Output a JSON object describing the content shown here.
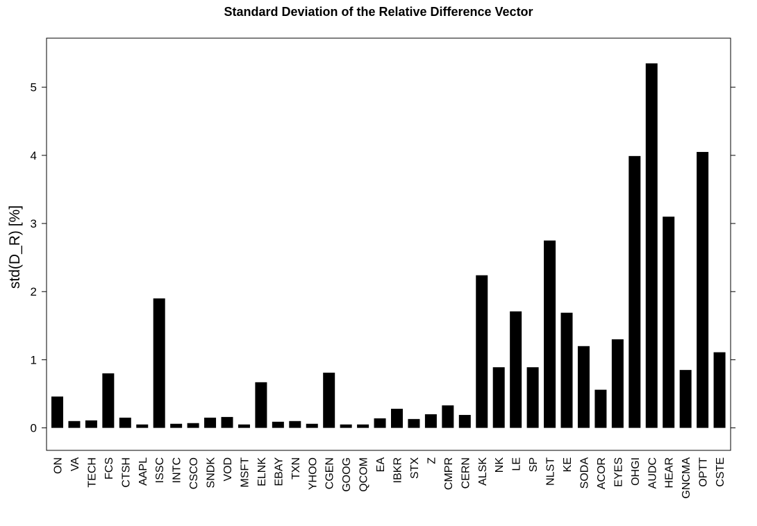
{
  "chart_data": {
    "type": "bar",
    "title": "Standard Deviation of the Relative Difference Vector",
    "xlabel": "",
    "ylabel": "std(D_R) [%]",
    "ylim": [
      -0.33,
      5.72
    ],
    "yticks": [
      "0",
      "1",
      "2",
      "3",
      "4",
      "5"
    ],
    "grid": false,
    "legend": "none",
    "bar_color": "#000000",
    "categories": [
      "ON",
      "VA",
      "TECH",
      "FCS",
      "CTSH",
      "AAPL",
      "ISSC",
      "INTC",
      "CSCO",
      "SNDK",
      "VOD",
      "MSFT",
      "ELNK",
      "EBAY",
      "TXN",
      "YHOO",
      "CGEN",
      "GOOG",
      "QCOM",
      "EA",
      "IBKR",
      "STX",
      "Z",
      "CMPR",
      "CERN",
      "ALSK",
      "NK",
      "LE",
      "SP",
      "NLST",
      "KE",
      "SODA",
      "ACOR",
      "EYES",
      "OHGI",
      "AUDC",
      "HEAR",
      "GNCMA",
      "OPTT",
      "CSTE"
    ],
    "values": [
      0.46,
      0.1,
      0.11,
      0.8,
      0.15,
      0.05,
      1.9,
      0.06,
      0.07,
      0.15,
      0.16,
      0.05,
      0.67,
      0.09,
      0.1,
      0.06,
      0.81,
      0.05,
      0.05,
      0.14,
      0.28,
      0.13,
      0.2,
      0.33,
      0.19,
      2.24,
      0.89,
      1.71,
      0.89,
      2.75,
      1.69,
      1.2,
      0.56,
      1.3,
      3.99,
      5.35,
      3.1,
      0.85,
      4.05,
      1.11
    ]
  }
}
